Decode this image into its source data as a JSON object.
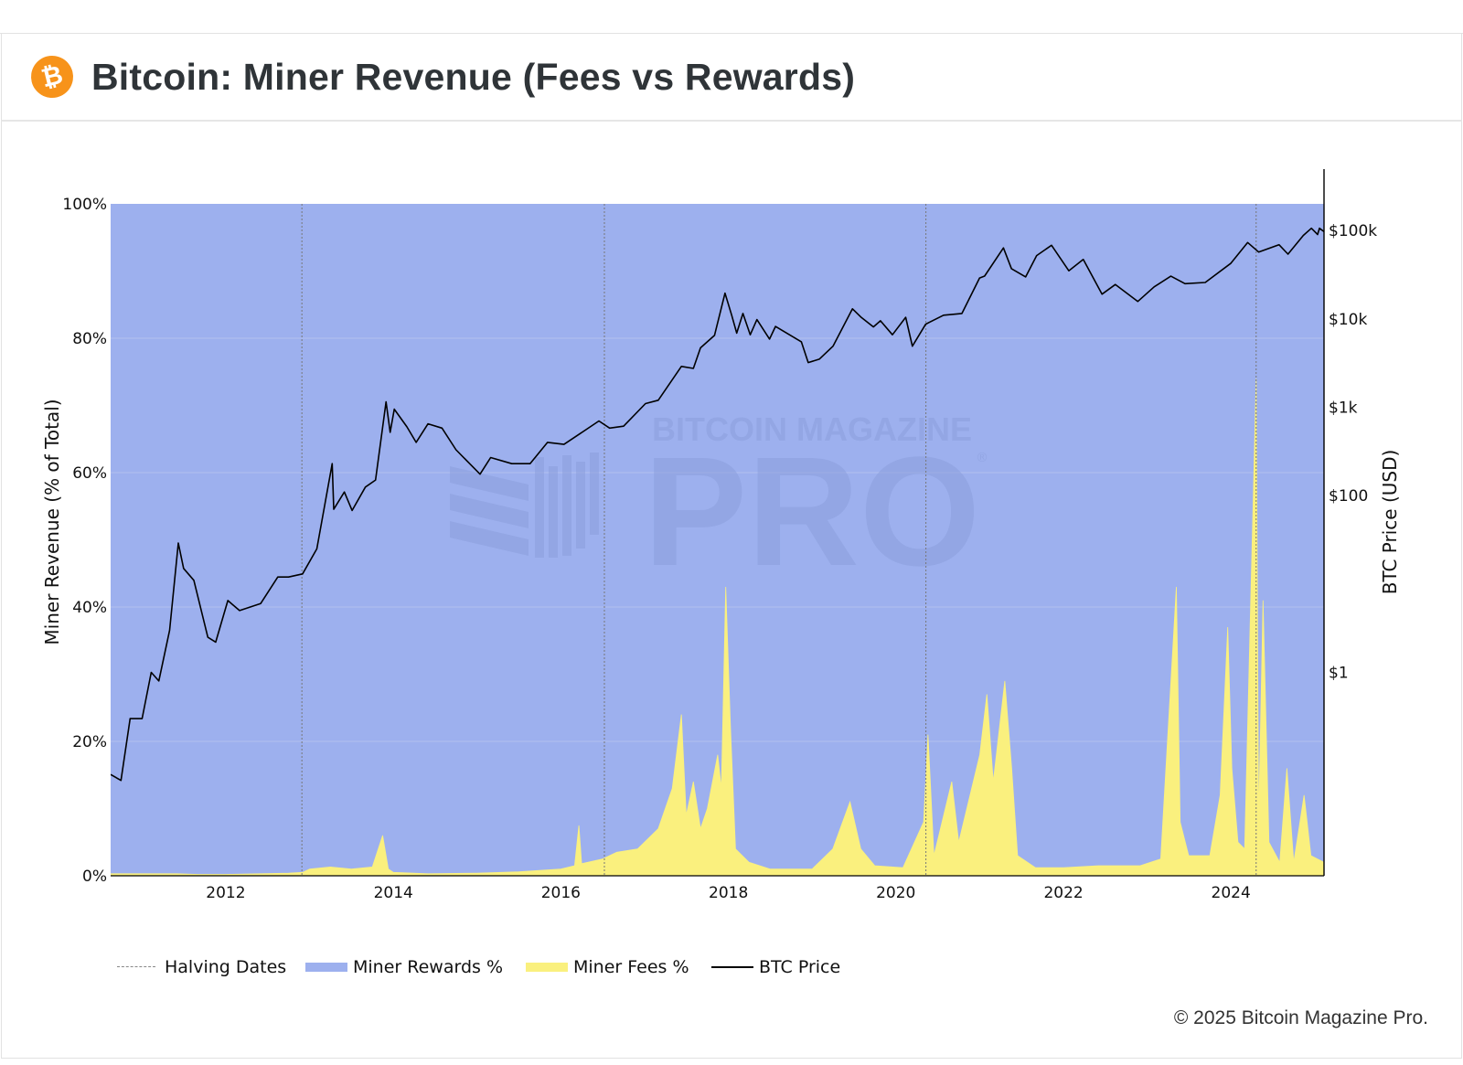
{
  "header": {
    "title": "Bitcoin: Miner Revenue (Fees vs Rewards)",
    "logo_glyph": "₿",
    "logo_color": "#f7931a"
  },
  "watermark": {
    "line1": "BITCOIN MAGAZINE",
    "line2": "PRO",
    "mark": "®"
  },
  "footer": {
    "copyright": "© 2025 Bitcoin Magazine Pro."
  },
  "legend": [
    {
      "key": "halving",
      "label": "Halving Dates"
    },
    {
      "key": "rewards",
      "label": "Miner Rewards %"
    },
    {
      "key": "fees",
      "label": "Miner Fees %"
    },
    {
      "key": "price",
      "label": "BTC Price"
    }
  ],
  "colors": {
    "rewards_fill": "#9db0ee",
    "fees_fill": "#faf07e",
    "price_line": "#000000",
    "halving_line": "#777777",
    "grid": "#b4c1ef",
    "watermark": "#8b9fdc"
  },
  "chart_data": {
    "type": "area",
    "ylabel": "Miner Revenue (% of Total)",
    "y2label": "BTC Price (USD)",
    "x_range": [
      "2010-08-17",
      "2025-02-10"
    ],
    "y_range": [
      0,
      100
    ],
    "y2_scale": "log",
    "y2_range": [
      0.005,
      200000
    ],
    "grid": true,
    "legend_position": "bottom",
    "x_ticks": [
      "2012",
      "2014",
      "2016",
      "2018",
      "2020",
      "2022",
      "2024"
    ],
    "y_ticks": [
      "0%",
      "20%",
      "40%",
      "60%",
      "80%",
      "100%"
    ],
    "y2_ticks": [
      {
        "label": "$1",
        "value": 1
      },
      {
        "label": "$100",
        "value": 100
      },
      {
        "label": "$1k",
        "value": 1000
      },
      {
        "label": "$10k",
        "value": 10000
      },
      {
        "label": "$100k",
        "value": 100000
      }
    ],
    "halving_dates": [
      "2012-11-28",
      "2016-07-09",
      "2020-05-11",
      "2024-04-20"
    ],
    "series": [
      {
        "name": "Miner Fees %",
        "kind": "area",
        "points": [
          [
            "2010-08-17",
            0.3
          ],
          [
            "2011-06-01",
            0.3
          ],
          [
            "2011-09-01",
            0.2
          ],
          [
            "2012-01-01",
            0.2
          ],
          [
            "2012-10-01",
            0.4
          ],
          [
            "2012-12-01",
            0.5
          ],
          [
            "2013-01-01",
            1.0
          ],
          [
            "2013-04-01",
            1.3
          ],
          [
            "2013-07-01",
            1.0
          ],
          [
            "2013-10-01",
            1.3
          ],
          [
            "2013-11-15",
            6.0
          ],
          [
            "2013-12-10",
            1.0
          ],
          [
            "2014-01-01",
            0.5
          ],
          [
            "2014-06-01",
            0.3
          ],
          [
            "2015-01-01",
            0.4
          ],
          [
            "2015-07-01",
            0.6
          ],
          [
            "2015-10-01",
            0.8
          ],
          [
            "2016-01-01",
            1.0
          ],
          [
            "2016-03-01",
            1.5
          ],
          [
            "2016-03-20",
            7.5
          ],
          [
            "2016-04-01",
            1.8
          ],
          [
            "2016-07-01",
            2.5
          ],
          [
            "2016-09-01",
            3.5
          ],
          [
            "2016-12-01",
            4.0
          ],
          [
            "2017-03-01",
            7.0
          ],
          [
            "2017-05-01",
            13.0
          ],
          [
            "2017-06-10",
            24.0
          ],
          [
            "2017-07-01",
            9.0
          ],
          [
            "2017-08-01",
            14.0
          ],
          [
            "2017-09-01",
            7.0
          ],
          [
            "2017-10-01",
            10.0
          ],
          [
            "2017-11-15",
            18.0
          ],
          [
            "2017-12-01",
            13.0
          ],
          [
            "2017-12-20",
            43.0
          ],
          [
            "2018-01-10",
            22.0
          ],
          [
            "2018-02-01",
            4.0
          ],
          [
            "2018-04-01",
            2.0
          ],
          [
            "2018-07-01",
            1.0
          ],
          [
            "2019-01-01",
            1.0
          ],
          [
            "2019-04-01",
            4.0
          ],
          [
            "2019-06-15",
            11.0
          ],
          [
            "2019-08-01",
            4.0
          ],
          [
            "2019-10-01",
            1.5
          ],
          [
            "2020-02-01",
            1.2
          ],
          [
            "2020-05-01",
            8.0
          ],
          [
            "2020-05-20",
            21.0
          ],
          [
            "2020-06-15",
            3.0
          ],
          [
            "2020-09-01",
            14.0
          ],
          [
            "2020-10-01",
            5.0
          ],
          [
            "2021-01-01",
            18.0
          ],
          [
            "2021-02-01",
            27.0
          ],
          [
            "2021-03-01",
            14.0
          ],
          [
            "2021-04-20",
            29.0
          ],
          [
            "2021-05-20",
            16.0
          ],
          [
            "2021-06-15",
            3.0
          ],
          [
            "2021-09-01",
            1.2
          ],
          [
            "2022-01-01",
            1.2
          ],
          [
            "2022-06-01",
            1.5
          ],
          [
            "2022-12-01",
            1.5
          ],
          [
            "2023-03-01",
            2.5
          ],
          [
            "2023-05-08",
            43.0
          ],
          [
            "2023-05-25",
            8.0
          ],
          [
            "2023-07-01",
            3.0
          ],
          [
            "2023-10-01",
            3.0
          ],
          [
            "2023-11-15",
            12.0
          ],
          [
            "2023-12-18",
            37.0
          ],
          [
            "2024-01-05",
            16.0
          ],
          [
            "2024-02-01",
            5.0
          ],
          [
            "2024-03-01",
            4.0
          ],
          [
            "2024-04-20",
            74.0
          ],
          [
            "2024-05-01",
            8.0
          ],
          [
            "2024-05-20",
            41.0
          ],
          [
            "2024-06-15",
            5.0
          ],
          [
            "2024-08-01",
            2.0
          ],
          [
            "2024-09-01",
            16.0
          ],
          [
            "2024-10-01",
            2.0
          ],
          [
            "2024-11-15",
            12.0
          ],
          [
            "2024-12-15",
            3.0
          ],
          [
            "2025-02-10",
            2.0
          ]
        ]
      },
      {
        "name": "Miner Rewards %",
        "kind": "area",
        "note_fill": "complement of Miner Fees % up to 100%"
      },
      {
        "name": "BTC Price",
        "kind": "line",
        "axis": "y2",
        "points": [
          [
            "2010-08-17",
            0.07
          ],
          [
            "2010-10-01",
            0.06
          ],
          [
            "2010-11-10",
            0.3
          ],
          [
            "2011-01-01",
            0.3
          ],
          [
            "2011-02-10",
            1.0
          ],
          [
            "2011-03-15",
            0.8
          ],
          [
            "2011-05-01",
            3.0
          ],
          [
            "2011-06-08",
            29.0
          ],
          [
            "2011-07-01",
            15.0
          ],
          [
            "2011-08-15",
            11.0
          ],
          [
            "2011-10-15",
            2.5
          ],
          [
            "2011-11-18",
            2.2
          ],
          [
            "2012-01-10",
            6.5
          ],
          [
            "2012-03-01",
            5.0
          ],
          [
            "2012-06-01",
            6.0
          ],
          [
            "2012-08-15",
            12.0
          ],
          [
            "2012-10-01",
            12.0
          ],
          [
            "2012-12-01",
            13.0
          ],
          [
            "2013-02-01",
            25.0
          ],
          [
            "2013-04-09",
            230.0
          ],
          [
            "2013-04-16",
            70.0
          ],
          [
            "2013-06-01",
            110.0
          ],
          [
            "2013-07-05",
            68.0
          ],
          [
            "2013-09-01",
            125.0
          ],
          [
            "2013-10-15",
            150.0
          ],
          [
            "2013-11-30",
            1150.0
          ],
          [
            "2013-12-18",
            520.0
          ],
          [
            "2014-01-05",
            950.0
          ],
          [
            "2014-03-01",
            600.0
          ],
          [
            "2014-04-10",
            400.0
          ],
          [
            "2014-06-01",
            650.0
          ],
          [
            "2014-08-01",
            580.0
          ],
          [
            "2014-10-01",
            330.0
          ],
          [
            "2015-01-14",
            175.0
          ],
          [
            "2015-03-01",
            270.0
          ],
          [
            "2015-06-01",
            230.0
          ],
          [
            "2015-08-20",
            230.0
          ],
          [
            "2015-11-04",
            400.0
          ],
          [
            "2016-01-15",
            380.0
          ],
          [
            "2016-06-15",
            700.0
          ],
          [
            "2016-08-01",
            580.0
          ],
          [
            "2016-10-01",
            610.0
          ],
          [
            "2017-01-04",
            1100.0
          ],
          [
            "2017-03-01",
            1200.0
          ],
          [
            "2017-06-10",
            2900.0
          ],
          [
            "2017-08-01",
            2750.0
          ],
          [
            "2017-09-01",
            4700.0
          ],
          [
            "2017-11-01",
            6500.0
          ],
          [
            "2017-12-17",
            19500.0
          ],
          [
            "2018-01-15",
            11000.0
          ],
          [
            "2018-02-06",
            6900.0
          ],
          [
            "2018-03-05",
            11500.0
          ],
          [
            "2018-04-06",
            6600.0
          ],
          [
            "2018-05-05",
            9800.0
          ],
          [
            "2018-06-29",
            5900.0
          ],
          [
            "2018-07-25",
            8200.0
          ],
          [
            "2018-11-15",
            5500.0
          ],
          [
            "2018-12-15",
            3200.0
          ],
          [
            "2019-02-01",
            3500.0
          ],
          [
            "2019-04-02",
            4900.0
          ],
          [
            "2019-06-26",
            13000.0
          ],
          [
            "2019-08-01",
            10500.0
          ],
          [
            "2019-09-25",
            8100.0
          ],
          [
            "2019-10-26",
            9500.0
          ],
          [
            "2019-12-17",
            6600.0
          ],
          [
            "2020-02-13",
            10400.0
          ],
          [
            "2020-03-13",
            4900.0
          ],
          [
            "2020-05-10",
            8700.0
          ],
          [
            "2020-07-27",
            11000.0
          ],
          [
            "2020-10-15",
            11500.0
          ],
          [
            "2020-12-31",
            29000.0
          ],
          [
            "2021-01-22",
            30500.0
          ],
          [
            "2021-04-14",
            63500.0
          ],
          [
            "2021-05-19",
            37000.0
          ],
          [
            "2021-07-20",
            29800.0
          ],
          [
            "2021-09-06",
            52000.0
          ],
          [
            "2021-11-10",
            68000.0
          ],
          [
            "2022-01-24",
            35000.0
          ],
          [
            "2022-03-28",
            47000.0
          ],
          [
            "2022-06-18",
            19000.0
          ],
          [
            "2022-08-15",
            24500.0
          ],
          [
            "2022-11-21",
            15700.0
          ],
          [
            "2023-01-31",
            23000.0
          ],
          [
            "2023-04-14",
            30400.0
          ],
          [
            "2023-06-15",
            25000.0
          ],
          [
            "2023-09-11",
            25800.0
          ],
          [
            "2023-12-31",
            42300.0
          ],
          [
            "2024-03-14",
            73000.0
          ],
          [
            "2024-05-01",
            57000.0
          ],
          [
            "2024-07-29",
            69000.0
          ],
          [
            "2024-09-06",
            54000.0
          ],
          [
            "2024-11-12",
            88000.0
          ],
          [
            "2024-12-17",
            106000.0
          ],
          [
            "2025-01-13",
            90000.0
          ],
          [
            "2025-01-21",
            106000.0
          ],
          [
            "2025-02-10",
            97000.0
          ]
        ]
      }
    ]
  }
}
